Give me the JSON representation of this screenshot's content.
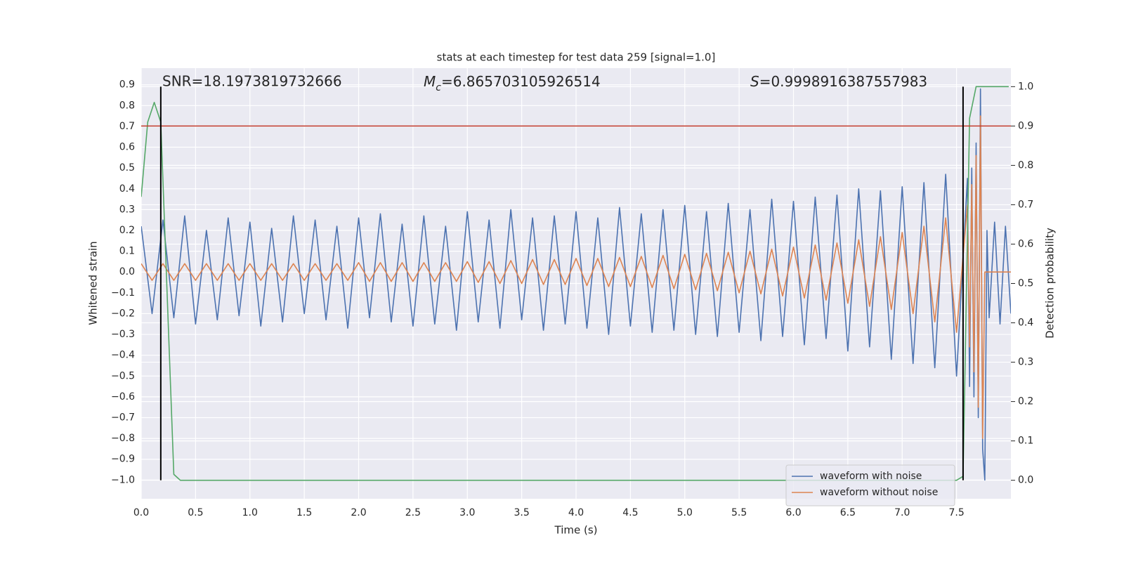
{
  "chart_data": {
    "type": "line",
    "title": "stats at each timestep for test data 259 [signal=1.0]",
    "xlabel": "Time (s)",
    "ylabel": "Whitened strain",
    "y2label": "Detection probability",
    "annotations": [
      {
        "text": "SNR=18.1973819732666"
      },
      {
        "symbol": "M",
        "subscript": "c",
        "text": "=6.865703105926514"
      },
      {
        "symbol": "S",
        "text": "=0.9998916387557983"
      }
    ],
    "xlim": [
      0,
      8.0
    ],
    "ylim": [
      -1.09,
      0.98
    ],
    "y2lim": [
      -0.047,
      1.047
    ],
    "xticks": [
      {
        "value": 0,
        "label": "0.0"
      },
      0.5,
      {
        "value": 1,
        "label": "1.0"
      },
      1.5,
      {
        "value": 2,
        "label": "2.0"
      },
      2.5,
      {
        "value": 3,
        "label": "3.0"
      },
      3.5,
      {
        "value": 4,
        "label": "4.0"
      },
      4.5,
      {
        "value": 5,
        "label": "5.0"
      },
      5.5,
      {
        "value": 6,
        "label": "6.0"
      },
      6.5,
      {
        "value": 7,
        "label": "7.0"
      },
      7.5
    ],
    "yticks": [
      {
        "value": -1,
        "label": "−1.0"
      },
      {
        "value": -0.9,
        "label": "−0.9"
      },
      {
        "value": -0.8,
        "label": "−0.8"
      },
      {
        "value": -0.7,
        "label": "−0.7"
      },
      {
        "value": -0.6,
        "label": "−0.6"
      },
      {
        "value": -0.5,
        "label": "−0.5"
      },
      {
        "value": -0.4,
        "label": "−0.4"
      },
      {
        "value": -0.3,
        "label": "−0.3"
      },
      {
        "value": -0.2,
        "label": "−0.2"
      },
      {
        "value": -0.1,
        "label": "−0.1"
      },
      {
        "value": 0,
        "label": "0.0"
      },
      0.1,
      0.2,
      0.3,
      0.4,
      0.5,
      0.6,
      0.7,
      0.8,
      0.9
    ],
    "y2ticks": [
      {
        "value": 0,
        "label": "0.0"
      },
      0.1,
      0.2,
      0.3,
      0.4,
      0.5,
      0.6,
      0.7,
      0.8,
      0.9,
      {
        "value": 1,
        "label": "1.0"
      }
    ],
    "grid": true,
    "legend": "lower right",
    "x": [
      0,
      0.1,
      0.2,
      0.3,
      0.4,
      0.5,
      0.6,
      0.7,
      0.8,
      0.9,
      1.0,
      1.1,
      1.2,
      1.3,
      1.4,
      1.5,
      1.6,
      1.7,
      1.8,
      1.9,
      2.0,
      2.1,
      2.2,
      2.3,
      2.4,
      2.5,
      2.6,
      2.7,
      2.8,
      2.9,
      3.0,
      3.1,
      3.2,
      3.3,
      3.4,
      3.5,
      3.6,
      3.7,
      3.8,
      3.9,
      4.0,
      4.1,
      4.2,
      4.3,
      4.4,
      4.5,
      4.6,
      4.7,
      4.8,
      4.9,
      5.0,
      5.1,
      5.2,
      5.3,
      5.4,
      5.5,
      5.6,
      5.7,
      5.8,
      5.9,
      6.0,
      6.1,
      6.2,
      6.3,
      6.4,
      6.5,
      6.6,
      6.7,
      6.8,
      6.9,
      7.0,
      7.1,
      7.2,
      7.3,
      7.4,
      7.5,
      7.6,
      7.62,
      7.64,
      7.66,
      7.68,
      7.7,
      7.72,
      7.74,
      7.76,
      7.78,
      7.8,
      7.85,
      7.9,
      7.95,
      8.0
    ],
    "series": [
      {
        "name": "waveform with noise",
        "color": "#4c72b0",
        "axis": "y",
        "values": [
          0.22,
          -0.2,
          0.25,
          -0.22,
          0.27,
          -0.25,
          0.2,
          -0.23,
          0.26,
          -0.21,
          0.24,
          -0.26,
          0.21,
          -0.24,
          0.27,
          -0.2,
          0.25,
          -0.23,
          0.22,
          -0.27,
          0.26,
          -0.22,
          0.28,
          -0.24,
          0.23,
          -0.26,
          0.27,
          -0.25,
          0.22,
          -0.28,
          0.29,
          -0.24,
          0.25,
          -0.27,
          0.3,
          -0.23,
          0.26,
          -0.28,
          0.27,
          -0.25,
          0.29,
          -0.27,
          0.26,
          -0.3,
          0.31,
          -0.26,
          0.28,
          -0.29,
          0.3,
          -0.28,
          0.32,
          -0.3,
          0.29,
          -0.31,
          0.33,
          -0.29,
          0.3,
          -0.33,
          0.35,
          -0.31,
          0.34,
          -0.35,
          0.36,
          -0.32,
          0.37,
          -0.38,
          0.4,
          -0.36,
          0.39,
          -0.42,
          0.41,
          -0.44,
          0.43,
          -0.46,
          0.47,
          -0.5,
          0.45,
          -0.55,
          0.5,
          -0.6,
          0.62,
          -0.7,
          0.88,
          -0.85,
          -1.0,
          0.2,
          -0.22,
          0.24,
          -0.25,
          0.22,
          -0.2
        ]
      },
      {
        "name": "waveform without noise",
        "color": "#dd8452",
        "axis": "y",
        "values": [
          0.04,
          -0.04,
          0.04,
          -0.04,
          0.04,
          -0.04,
          0.04,
          -0.04,
          0.04,
          -0.04,
          0.04,
          -0.04,
          0.04,
          -0.04,
          0.04,
          -0.04,
          0.04,
          -0.04,
          0.04,
          -0.04,
          0.045,
          -0.045,
          0.045,
          -0.045,
          0.045,
          -0.045,
          0.045,
          -0.045,
          0.045,
          -0.045,
          0.05,
          -0.05,
          0.05,
          -0.055,
          0.055,
          -0.055,
          0.06,
          -0.06,
          0.06,
          -0.06,
          0.065,
          -0.065,
          0.065,
          -0.07,
          0.07,
          -0.07,
          0.075,
          -0.075,
          0.08,
          -0.08,
          0.085,
          -0.085,
          0.09,
          -0.09,
          0.095,
          -0.1,
          0.1,
          -0.105,
          0.11,
          -0.115,
          0.12,
          -0.125,
          0.13,
          -0.135,
          0.14,
          -0.15,
          0.155,
          -0.165,
          0.17,
          -0.18,
          0.19,
          -0.2,
          0.22,
          -0.24,
          0.26,
          -0.29,
          0.32,
          -0.36,
          0.42,
          -0.48,
          0.56,
          -0.65,
          0.75,
          -0.8,
          0.0,
          0.0,
          0.0,
          0.0,
          0.0,
          0.0,
          0.0
        ]
      },
      {
        "color": "#55a868",
        "axis": "y2",
        "x": [
          0,
          0.06,
          0.12,
          0.18,
          0.3,
          0.36,
          7.5,
          7.56,
          7.62,
          7.68,
          7.98
        ],
        "values": [
          0.72,
          0.91,
          0.96,
          0.91,
          0.015,
          0,
          0,
          0.01,
          0.92,
          1.0,
          1.0
        ]
      }
    ],
    "threshold": {
      "value": 0.9,
      "axis": "y2",
      "color": "#c0392b"
    },
    "vlines": {
      "x": [
        0.18,
        7.56
      ],
      "ymin": 0,
      "ymax": 1,
      "axis": "y2",
      "color": "#000000"
    }
  }
}
